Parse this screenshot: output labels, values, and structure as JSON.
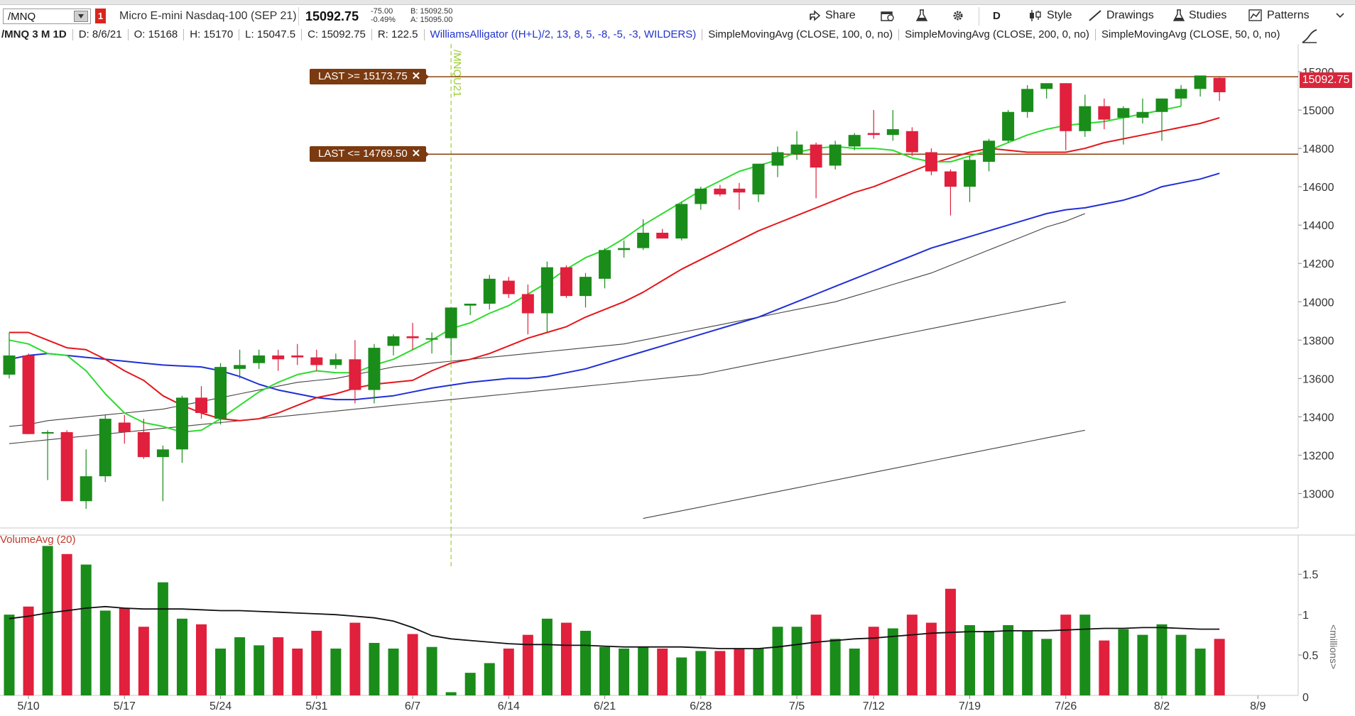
{
  "toolbar": {
    "symbol": "/MNQ",
    "link_badge": "1",
    "description": "Micro E-mini Nasdaq-100 (SEP 21)",
    "last_price": "15092.75",
    "net_change": "-75.00",
    "pct_change": "-0.49%",
    "bid": "B: 15092.50",
    "ask": "A: 15095.00",
    "share_label": "Share",
    "aggregation_label": "D",
    "style_label": "Style",
    "drawings_label": "Drawings",
    "studies_label": "Studies",
    "patterns_label": "Patterns"
  },
  "infobar": {
    "symbol_period": "/MNQ 3 M 1D",
    "date": "D: 8/6/21",
    "open": "O: 15168",
    "high": "H: 15170",
    "low": "L: 15047.5",
    "close": "C: 15092.75",
    "range": "R: 122.5",
    "study_alligator": "WilliamsAlligator ((H+L)/2, 13, 8, 5, -8, -5, -3, WILDERS)",
    "study_sma100": "SimpleMovingAvg (CLOSE, 100, 0, no)",
    "study_sma200": "SimpleMovingAvg (CLOSE, 200, 0, no)",
    "study_sma50": "SimpleMovingAvg (CLOSE, 50, 0, no)"
  },
  "alerts": {
    "upper": "LAST >= 15173.75",
    "lower": "LAST <= 14769.50"
  },
  "price_tag": "15092.75",
  "expiry_label": "/MNQU21",
  "volume": {
    "title": "VolumeAvg (20)",
    "unit": "<millions>"
  },
  "colors": {
    "up": "#1a8c1a",
    "down": "#e0203c",
    "alligator_jaw": "#1f2fd6",
    "alligator_teeth": "#e4161a",
    "alligator_lips": "#2edb2e",
    "sma": "#444444",
    "alert_line": "#8b4513",
    "expiry_line": "#9acd32"
  },
  "chart_data": [
    {
      "type": "candlestick",
      "title": "",
      "y_axis": {
        "range": [
          12850,
          15300
        ],
        "ticks": [
          13000,
          13200,
          13400,
          13600,
          13800,
          14000,
          14200,
          14400,
          14600,
          14800,
          15000,
          15200
        ]
      },
      "x_tick_labels": [
        "5/10",
        "5/17",
        "5/24",
        "5/31",
        "6/7",
        "6/14",
        "6/21",
        "6/28",
        "7/5",
        "7/12",
        "7/19",
        "7/26",
        "8/2",
        "8/9"
      ],
      "x_tick_index": [
        1,
        6,
        11,
        16,
        21,
        26,
        31,
        36,
        41,
        45,
        50,
        55,
        60,
        65
      ],
      "candles": [
        {
          "o": 13620,
          "h": 13840,
          "l": 13600,
          "c": 13720
        },
        {
          "o": 13720,
          "h": 13730,
          "l": 13310,
          "c": 13310
        },
        {
          "o": 13320,
          "h": 13330,
          "l": 13070,
          "c": 13320
        },
        {
          "o": 13320,
          "h": 13330,
          "l": 12960,
          "c": 12960
        },
        {
          "o": 12960,
          "h": 13230,
          "l": 12920,
          "c": 13090
        },
        {
          "o": 13090,
          "h": 13410,
          "l": 13060,
          "c": 13390
        },
        {
          "o": 13370,
          "h": 13410,
          "l": 13260,
          "c": 13320
        },
        {
          "o": 13320,
          "h": 13390,
          "l": 13180,
          "c": 13190
        },
        {
          "o": 13190,
          "h": 13250,
          "l": 12960,
          "c": 13230
        },
        {
          "o": 13230,
          "h": 13510,
          "l": 13160,
          "c": 13500
        },
        {
          "o": 13500,
          "h": 13560,
          "l": 13390,
          "c": 13420
        },
        {
          "o": 13390,
          "h": 13680,
          "l": 13360,
          "c": 13660
        },
        {
          "o": 13650,
          "h": 13750,
          "l": 13600,
          "c": 13670
        },
        {
          "o": 13680,
          "h": 13750,
          "l": 13650,
          "c": 13720
        },
        {
          "o": 13720,
          "h": 13750,
          "l": 13640,
          "c": 13700
        },
        {
          "o": 13720,
          "h": 13780,
          "l": 13670,
          "c": 13710
        },
        {
          "o": 13710,
          "h": 13750,
          "l": 13640,
          "c": 13670
        },
        {
          "o": 13670,
          "h": 13730,
          "l": 13650,
          "c": 13700
        },
        {
          "o": 13700,
          "h": 13800,
          "l": 13470,
          "c": 13540
        },
        {
          "o": 13540,
          "h": 13780,
          "l": 13470,
          "c": 13760
        },
        {
          "o": 13770,
          "h": 13830,
          "l": 13720,
          "c": 13820
        },
        {
          "o": 13820,
          "h": 13890,
          "l": 13750,
          "c": 13810
        },
        {
          "o": 13810,
          "h": 13840,
          "l": 13730,
          "c": 13810
        },
        {
          "o": 13810,
          "h": 13970,
          "l": 13720,
          "c": 13970
        },
        {
          "o": 13980,
          "h": 13990,
          "l": 13930,
          "c": 13990
        },
        {
          "o": 13990,
          "h": 14140,
          "l": 13960,
          "c": 14120
        },
        {
          "o": 14110,
          "h": 14130,
          "l": 14020,
          "c": 14040
        },
        {
          "o": 14040,
          "h": 14090,
          "l": 13830,
          "c": 13940
        },
        {
          "o": 13940,
          "h": 14210,
          "l": 13840,
          "c": 14180
        },
        {
          "o": 14180,
          "h": 14190,
          "l": 14020,
          "c": 14030
        },
        {
          "o": 14030,
          "h": 14150,
          "l": 13970,
          "c": 14130
        },
        {
          "o": 14120,
          "h": 14280,
          "l": 14070,
          "c": 14270
        },
        {
          "o": 14270,
          "h": 14320,
          "l": 14230,
          "c": 14280
        },
        {
          "o": 14280,
          "h": 14430,
          "l": 14270,
          "c": 14360
        },
        {
          "o": 14360,
          "h": 14380,
          "l": 14330,
          "c": 14330
        },
        {
          "o": 14330,
          "h": 14520,
          "l": 14320,
          "c": 14510
        },
        {
          "o": 14510,
          "h": 14600,
          "l": 14480,
          "c": 14590
        },
        {
          "o": 14590,
          "h": 14610,
          "l": 14550,
          "c": 14560
        },
        {
          "o": 14590,
          "h": 14620,
          "l": 14480,
          "c": 14570
        },
        {
          "o": 14560,
          "h": 14720,
          "l": 14520,
          "c": 14720
        },
        {
          "o": 14710,
          "h": 14810,
          "l": 14650,
          "c": 14780
        },
        {
          "o": 14770,
          "h": 14890,
          "l": 14740,
          "c": 14820
        },
        {
          "o": 14820,
          "h": 14830,
          "l": 14540,
          "c": 14700
        },
        {
          "o": 14710,
          "h": 14840,
          "l": 14690,
          "c": 14820
        },
        {
          "o": 14810,
          "h": 14880,
          "l": 14790,
          "c": 14870
        },
        {
          "o": 14880,
          "h": 15000,
          "l": 14850,
          "c": 14870
        },
        {
          "o": 14870,
          "h": 15000,
          "l": 14840,
          "c": 14900
        },
        {
          "o": 14890,
          "h": 14910,
          "l": 14760,
          "c": 14780
        },
        {
          "o": 14780,
          "h": 14800,
          "l": 14660,
          "c": 14680
        },
        {
          "o": 14680,
          "h": 14690,
          "l": 14450,
          "c": 14600
        },
        {
          "o": 14600,
          "h": 14760,
          "l": 14520,
          "c": 14740
        },
        {
          "o": 14730,
          "h": 14850,
          "l": 14680,
          "c": 14840
        },
        {
          "o": 14840,
          "h": 15000,
          "l": 14830,
          "c": 14990
        },
        {
          "o": 14990,
          "h": 15130,
          "l": 14960,
          "c": 15110
        },
        {
          "o": 15110,
          "h": 15140,
          "l": 15060,
          "c": 15140
        },
        {
          "o": 15140,
          "h": 15140,
          "l": 14790,
          "c": 14890
        },
        {
          "o": 14890,
          "h": 15080,
          "l": 14860,
          "c": 15020
        },
        {
          "o": 15020,
          "h": 15060,
          "l": 14900,
          "c": 14950
        },
        {
          "o": 14960,
          "h": 15020,
          "l": 14820,
          "c": 15010
        },
        {
          "o": 14960,
          "h": 15060,
          "l": 14930,
          "c": 14990
        },
        {
          "o": 14990,
          "h": 15060,
          "l": 14840,
          "c": 15060
        },
        {
          "o": 15060,
          "h": 15130,
          "l": 15020,
          "c": 15110
        },
        {
          "o": 15110,
          "h": 15180,
          "l": 15070,
          "c": 15180
        },
        {
          "o": 15168,
          "h": 15170,
          "l": 15047.5,
          "c": 15092.75
        }
      ],
      "alligator_jaw": [
        13700,
        13720,
        13730,
        13720,
        13710,
        13700,
        13690,
        13680,
        13670,
        13665,
        13660,
        13640,
        13610,
        13570,
        13540,
        13520,
        13500,
        13490,
        13490,
        13500,
        13510,
        13530,
        13550,
        13565,
        13580,
        13590,
        13600,
        13600,
        13610,
        13630,
        13650,
        13680,
        13710,
        13740,
        13770,
        13800,
        13830,
        13860,
        13890,
        13920,
        13960,
        14000,
        14040,
        14080,
        14120,
        14160,
        14200,
        14240,
        14280,
        14310,
        14340,
        14370,
        14400,
        14430,
        14460,
        14480,
        14490,
        14510,
        14530,
        14560,
        14600,
        14620,
        14640,
        14670
      ],
      "alligator_teeth": [
        13840,
        13840,
        13800,
        13760,
        13750,
        13700,
        13640,
        13590,
        13510,
        13460,
        13420,
        13390,
        13380,
        13390,
        13420,
        13460,
        13500,
        13520,
        13550,
        13570,
        13580,
        13590,
        13640,
        13680,
        13700,
        13730,
        13770,
        13810,
        13840,
        13870,
        13920,
        13960,
        14000,
        14050,
        14110,
        14170,
        14220,
        14270,
        14320,
        14370,
        14410,
        14450,
        14490,
        14530,
        14570,
        14600,
        14640,
        14680,
        14720,
        14750,
        14780,
        14800,
        14790,
        14780,
        14780,
        14780,
        14800,
        14830,
        14850,
        14870,
        14890,
        14910,
        14930,
        14960
      ],
      "alligator_lips": [
        13800,
        13780,
        13730,
        13720,
        13640,
        13520,
        13420,
        13370,
        13350,
        13320,
        13330,
        13390,
        13460,
        13530,
        13580,
        13620,
        13640,
        13630,
        13630,
        13670,
        13700,
        13750,
        13800,
        13860,
        13890,
        13940,
        13980,
        14040,
        14100,
        14170,
        14230,
        14270,
        14330,
        14400,
        14460,
        14520,
        14580,
        14630,
        14680,
        14710,
        14740,
        14780,
        14800,
        14810,
        14800,
        14800,
        14790,
        14750,
        14730,
        14730,
        14760,
        14790,
        14830,
        14870,
        14900,
        14920,
        14930,
        14940,
        14960,
        14980,
        15000,
        15020
      ],
      "sma50": [
        13350,
        13360,
        13380,
        13390,
        13400,
        13410,
        13420,
        13430,
        13440,
        13460,
        13480,
        13500,
        13520,
        13540,
        13560,
        13580,
        13590,
        13600,
        13620,
        13640,
        13660,
        13670,
        13680,
        13690,
        13700,
        13710,
        13720,
        13730,
        13740,
        13750,
        13760,
        13770,
        13780,
        13800,
        13820,
        13840,
        13860,
        13880,
        13900,
        13920,
        13940,
        13960,
        13980,
        14000,
        14030,
        14060,
        14090,
        14120,
        14150,
        14190,
        14230,
        14270,
        14310,
        14350,
        14390,
        14420,
        14460
      ],
      "sma100": [
        13260,
        13270,
        13280,
        13290,
        13300,
        13310,
        13320,
        13330,
        13340,
        13350,
        13360,
        13370,
        13380,
        13390,
        13400,
        13410,
        13420,
        13430,
        13440,
        13450,
        13460,
        13470,
        13480,
        13490,
        13500,
        13510,
        13520,
        13530,
        13540,
        13550,
        13560,
        13570,
        13580,
        13590,
        13600,
        13610,
        13620,
        13640,
        13660,
        13680,
        13700,
        13720,
        13740,
        13760,
        13780,
        13800,
        13820,
        13840,
        13860,
        13880,
        13900,
        13920,
        13940,
        13960,
        13980,
        14000
      ],
      "sma200": [
        12870,
        12890,
        12910,
        12930,
        12950,
        12970,
        12990,
        13010,
        13030,
        13050,
        13070,
        13090,
        13110,
        13130,
        13150,
        13170,
        13190,
        13210,
        13230,
        13250,
        13270,
        13290,
        13310,
        13330
      ]
    },
    {
      "type": "bar",
      "title": "VolumeAvg (20)",
      "y_axis": {
        "range": [
          0,
          1.95
        ],
        "ticks": [
          "0",
          "0.5",
          "1",
          "1.5"
        ]
      },
      "values": [
        1.0,
        1.1,
        1.85,
        1.75,
        1.62,
        1.05,
        1.08,
        0.85,
        1.4,
        0.95,
        0.88,
        0.58,
        0.72,
        0.62,
        0.72,
        0.58,
        0.8,
        0.58,
        0.9,
        0.65,
        0.58,
        0.76,
        0.6,
        0.04,
        0.28,
        0.4,
        0.58,
        0.75,
        0.95,
        0.9,
        0.8,
        0.6,
        0.58,
        0.6,
        0.58,
        0.47,
        0.55,
        0.55,
        0.58,
        0.58,
        0.85,
        0.85,
        1.0,
        0.7,
        0.58,
        0.85,
        0.83,
        1.0,
        0.9,
        1.32,
        0.87,
        0.8,
        0.87,
        0.8,
        0.7,
        1.0,
        1.0,
        0.68,
        0.82,
        0.75,
        0.88,
        0.75,
        0.58,
        0.7
      ],
      "average": [
        0.95,
        0.98,
        1.02,
        1.05,
        1.08,
        1.1,
        1.08,
        1.07,
        1.07,
        1.07,
        1.06,
        1.05,
        1.05,
        1.04,
        1.03,
        1.02,
        1.01,
        1.0,
        0.98,
        0.96,
        0.92,
        0.84,
        0.74,
        0.7,
        0.68,
        0.66,
        0.64,
        0.63,
        0.63,
        0.62,
        0.62,
        0.61,
        0.6,
        0.6,
        0.6,
        0.6,
        0.59,
        0.58,
        0.58,
        0.58,
        0.6,
        0.63,
        0.66,
        0.68,
        0.7,
        0.71,
        0.73,
        0.75,
        0.77,
        0.78,
        0.79,
        0.79,
        0.8,
        0.8,
        0.8,
        0.81,
        0.82,
        0.83,
        0.83,
        0.84,
        0.84,
        0.83,
        0.82,
        0.82
      ]
    }
  ]
}
